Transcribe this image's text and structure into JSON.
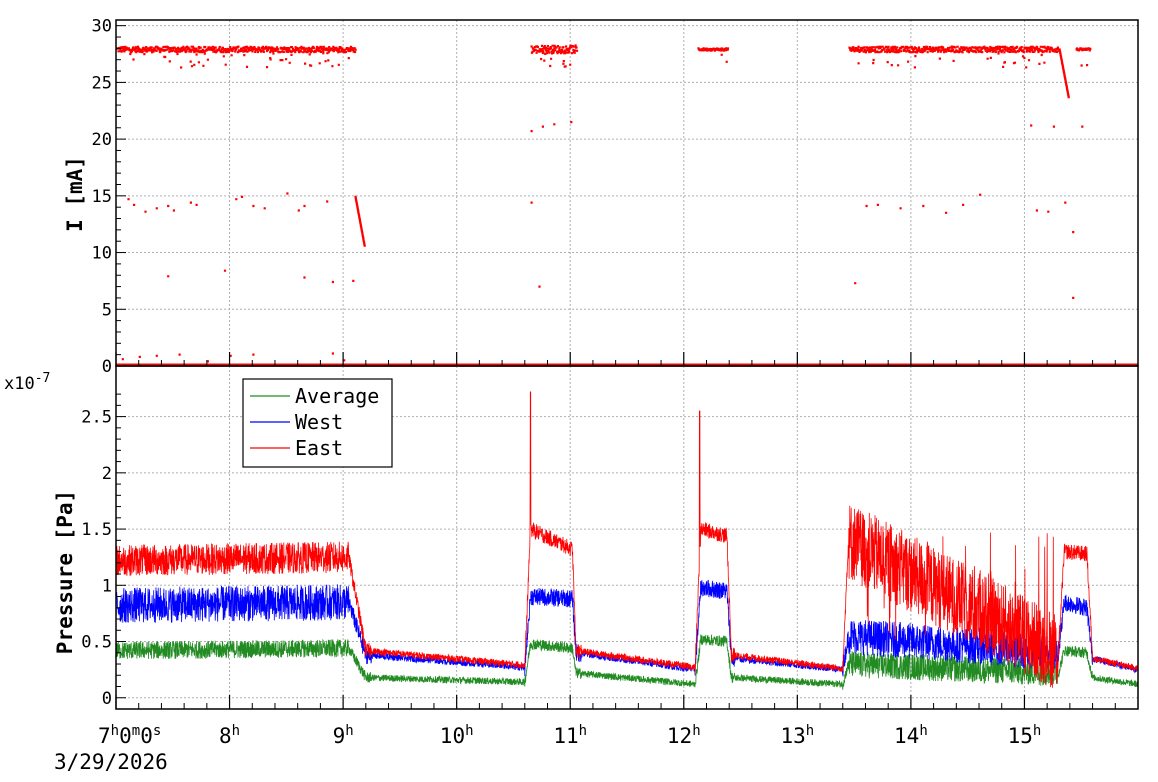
{
  "chart_data": [
    {
      "type": "scatter",
      "ylabel": "I [mA]",
      "ylim": [
        0,
        30.5
      ],
      "yticks": [
        0,
        5,
        10,
        15,
        20,
        25,
        30
      ],
      "color": "#ff0000",
      "series": [
        {
          "segments": [
            {
              "x": [
                7.0,
                9.1
              ],
              "y": 28.0,
              "spread": 0.5
            },
            {
              "x": [
                10.65,
                11.05
              ],
              "y": 28.0,
              "spread": 0.7
            },
            {
              "x": [
                12.12,
                12.38
              ],
              "y": 28.0,
              "spread": 0.2
            },
            {
              "x": [
                13.45,
                15.3
              ],
              "y": 28.0,
              "spread": 0.5
            },
            {
              "x": [
                15.45,
                15.57
              ],
              "y": 28.0,
              "spread": 0.2
            }
          ],
          "decays": [
            {
              "x": [
                9.1,
                9.18
              ],
              "y": [
                15.0,
                10.7
              ]
            },
            {
              "x": [
                15.3,
                15.38
              ],
              "y": [
                28.0,
                23.8
              ]
            }
          ],
          "scatter_points": [
            {
              "x": 7.1,
              "y": 14.8
            },
            {
              "x": 7.15,
              "y": 14.3
            },
            {
              "x": 7.25,
              "y": 13.7
            },
            {
              "x": 7.35,
              "y": 14.0
            },
            {
              "x": 7.45,
              "y": 14.2
            },
            {
              "x": 7.5,
              "y": 13.8
            },
            {
              "x": 7.65,
              "y": 14.5
            },
            {
              "x": 7.7,
              "y": 14.3
            },
            {
              "x": 8.05,
              "y": 14.8
            },
            {
              "x": 8.1,
              "y": 15.0
            },
            {
              "x": 8.2,
              "y": 14.2
            },
            {
              "x": 8.3,
              "y": 14.0
            },
            {
              "x": 8.5,
              "y": 15.3
            },
            {
              "x": 8.6,
              "y": 13.8
            },
            {
              "x": 8.65,
              "y": 14.2
            },
            {
              "x": 8.85,
              "y": 14.6
            },
            {
              "x": 7.45,
              "y": 8.0
            },
            {
              "x": 7.95,
              "y": 8.5
            },
            {
              "x": 8.65,
              "y": 7.9
            },
            {
              "x": 8.9,
              "y": 7.5
            },
            {
              "x": 9.08,
              "y": 7.6
            },
            {
              "x": 10.72,
              "y": 7.1
            },
            {
              "x": 10.65,
              "y": 14.5
            },
            {
              "x": 10.65,
              "y": 20.8
            },
            {
              "x": 10.75,
              "y": 21.2
            },
            {
              "x": 10.85,
              "y": 21.4
            },
            {
              "x": 11.0,
              "y": 21.6
            },
            {
              "x": 13.5,
              "y": 7.4
            },
            {
              "x": 13.6,
              "y": 14.2
            },
            {
              "x": 13.7,
              "y": 14.3
            },
            {
              "x": 13.9,
              "y": 14.0
            },
            {
              "x": 14.1,
              "y": 14.2
            },
            {
              "x": 14.3,
              "y": 13.6
            },
            {
              "x": 14.45,
              "y": 14.3
            },
            {
              "x": 14.6,
              "y": 15.2
            },
            {
              "x": 15.1,
              "y": 13.8
            },
            {
              "x": 15.2,
              "y": 13.7
            },
            {
              "x": 15.35,
              "y": 14.5
            },
            {
              "x": 15.05,
              "y": 21.3
            },
            {
              "x": 15.25,
              "y": 21.2
            },
            {
              "x": 15.5,
              "y": 21.2
            },
            {
              "x": 15.42,
              "y": 11.9
            },
            {
              "x": 15.42,
              "y": 6.1
            },
            {
              "x": 7.05,
              "y": 0.7
            },
            {
              "x": 7.2,
              "y": 0.9
            },
            {
              "x": 7.35,
              "y": 1.0
            },
            {
              "x": 7.55,
              "y": 1.1
            },
            {
              "x": 7.8,
              "y": 0.5
            },
            {
              "x": 8.0,
              "y": 1.0
            },
            {
              "x": 8.2,
              "y": 1.1
            },
            {
              "x": 8.9,
              "y": 1.2
            },
            {
              "x": 9.0,
              "y": 0.6
            }
          ]
        }
      ]
    },
    {
      "type": "line",
      "ylabel": "Pressure [Pa]",
      "y_multiplier": "x10",
      "y_exponent": "-7",
      "ylim": [
        -0.1,
        2.95
      ],
      "yticks": [
        0,
        0.5,
        1,
        1.5,
        2,
        2.5
      ],
      "ytick_labels": [
        "0",
        "0.5",
        "1",
        "1.5",
        "2",
        "2.5"
      ],
      "series": [
        {
          "name": "Average",
          "color": "#228b22",
          "keyframes": [
            [
              7.0,
              0.42
            ],
            [
              9.05,
              0.44
            ],
            [
              9.2,
              0.18
            ],
            [
              10.6,
              0.14
            ],
            [
              10.65,
              0.48
            ],
            [
              11.02,
              0.44
            ],
            [
              11.05,
              0.22
            ],
            [
              12.1,
              0.12
            ],
            [
              12.15,
              0.52
            ],
            [
              12.38,
              0.5
            ],
            [
              12.42,
              0.18
            ],
            [
              13.4,
              0.12
            ],
            [
              13.45,
              0.3
            ],
            [
              15.3,
              0.22
            ],
            [
              15.35,
              0.42
            ],
            [
              15.55,
              0.4
            ],
            [
              15.6,
              0.18
            ],
            [
              16.0,
              0.12
            ]
          ]
        },
        {
          "name": "West",
          "color": "#0000ff",
          "keyframes": [
            [
              7.0,
              0.82
            ],
            [
              9.05,
              0.85
            ],
            [
              9.2,
              0.38
            ],
            [
              10.6,
              0.27
            ],
            [
              10.65,
              0.9
            ],
            [
              11.02,
              0.88
            ],
            [
              11.05,
              0.4
            ],
            [
              12.1,
              0.25
            ],
            [
              12.15,
              0.98
            ],
            [
              12.38,
              0.95
            ],
            [
              12.42,
              0.35
            ],
            [
              13.4,
              0.25
            ],
            [
              13.45,
              0.55
            ],
            [
              15.3,
              0.4
            ],
            [
              15.35,
              0.85
            ],
            [
              15.55,
              0.8
            ],
            [
              15.6,
              0.35
            ],
            [
              16.0,
              0.25
            ]
          ]
        },
        {
          "name": "East",
          "color": "#ff0000",
          "keyframes": [
            [
              7.0,
              1.22
            ],
            [
              9.05,
              1.25
            ],
            [
              9.2,
              0.42
            ],
            [
              10.6,
              0.29
            ],
            [
              10.65,
              1.5
            ],
            [
              11.02,
              1.32
            ],
            [
              11.05,
              0.42
            ],
            [
              12.1,
              0.27
            ],
            [
              12.15,
              1.5
            ],
            [
              12.38,
              1.44
            ],
            [
              12.42,
              0.38
            ],
            [
              13.4,
              0.26
            ],
            [
              13.45,
              1.4
            ],
            [
              15.3,
              0.4
            ],
            [
              15.35,
              1.3
            ],
            [
              15.55,
              1.28
            ],
            [
              15.6,
              0.35
            ],
            [
              16.0,
              0.26
            ]
          ],
          "spikes": [
            [
              10.65,
              2.72
            ],
            [
              12.14,
              2.55
            ]
          ]
        }
      ],
      "legend": {
        "placement": "top-left"
      }
    }
  ],
  "x_axis": {
    "range": [
      7.0,
      16.0
    ],
    "ticks": [
      {
        "x": 7,
        "base": "7",
        "sup1": "h",
        "mid1": "0",
        "sup2": "m",
        "mid2": "0",
        "sup3": "s"
      },
      {
        "x": 8,
        "base": "8",
        "sup1": "h"
      },
      {
        "x": 9,
        "base": "9",
        "sup1": "h"
      },
      {
        "x": 10,
        "base": "10",
        "sup1": "h"
      },
      {
        "x": 11,
        "base": "11",
        "sup1": "h"
      },
      {
        "x": 12,
        "base": "12",
        "sup1": "h"
      },
      {
        "x": 13,
        "base": "13",
        "sup1": "h"
      },
      {
        "x": 14,
        "base": "14",
        "sup1": "h"
      },
      {
        "x": 15,
        "base": "15",
        "sup1": "h"
      }
    ],
    "date_label": "3/29/2026"
  }
}
